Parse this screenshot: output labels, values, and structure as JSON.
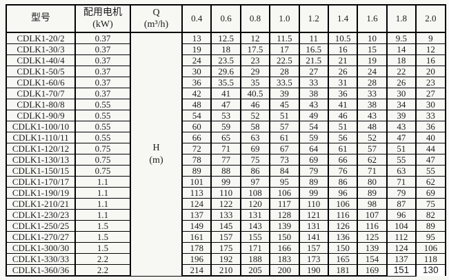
{
  "table": {
    "headers": {
      "model": "型号",
      "motor_line1": "配用电机",
      "motor_line2": "(kW)",
      "q_line1": "Q",
      "q_line2": "(m³/h)",
      "flow_columns": [
        "0.4",
        "0.6",
        "0.8",
        "1.0",
        "1.2",
        "1.4",
        "1.6",
        "1.8",
        "2.0"
      ]
    },
    "h_cell": {
      "line1": "H",
      "line2": "(m)"
    },
    "rows": [
      {
        "model": "CDLK1-20/2",
        "kw": "0.37",
        "values": [
          "13",
          "12.5",
          "12",
          "11.5",
          "11",
          "10.5",
          "10",
          "9.5",
          "9"
        ]
      },
      {
        "model": "CDLK1-30/3",
        "kw": "0.37",
        "values": [
          "19",
          "18",
          "17.5",
          "17",
          "16.5",
          "16",
          "15",
          "14",
          "12"
        ]
      },
      {
        "model": "CDLK1-40/4",
        "kw": "0.37",
        "values": [
          "24",
          "23.5",
          "23",
          "22.5",
          "21.5",
          "21",
          "19",
          "18",
          "16"
        ]
      },
      {
        "model": "CDLK1-50/5",
        "kw": "0.37",
        "values": [
          "30",
          "29.6",
          "29",
          "28",
          "27",
          "26",
          "24",
          "22",
          "20"
        ]
      },
      {
        "model": "CDLK1-60/6",
        "kw": "0.37",
        "values": [
          "36",
          "35.5",
          "35",
          "33.5",
          "33",
          "31",
          "28",
          "26",
          "23"
        ]
      },
      {
        "model": "CDLK1-70/7",
        "kw": "0.37",
        "values": [
          "42",
          "41",
          "40.5",
          "39",
          "38",
          "36",
          "33",
          "30",
          "27"
        ]
      },
      {
        "model": "CDLK1-80/8",
        "kw": "0.55",
        "values": [
          "48",
          "47",
          "46",
          "45",
          "43",
          "41",
          "38",
          "34",
          "30"
        ]
      },
      {
        "model": "CDLK1-90/9",
        "kw": "0.55",
        "values": [
          "54",
          "53",
          "52",
          "51",
          "49",
          "46",
          "43",
          "39",
          "33"
        ]
      },
      {
        "model": "CDLK1-100/10",
        "kw": "0.55",
        "values": [
          "60",
          "59",
          "58",
          "57",
          "54",
          "51",
          "48",
          "43",
          "36"
        ]
      },
      {
        "model": "CDLK1-110/11",
        "kw": "0.55",
        "values": [
          "66",
          "65",
          "63",
          "61",
          "59",
          "56",
          "52",
          "47",
          "40"
        ]
      },
      {
        "model": "CDLK1-120/12",
        "kw": "0.75",
        "values": [
          "72",
          "71",
          "69",
          "67",
          "64",
          "61",
          "57",
          "51",
          "44"
        ]
      },
      {
        "model": "CDLK1-130/13",
        "kw": "0.75",
        "values": [
          "78",
          "77",
          "75",
          "73",
          "69",
          "66",
          "62",
          "55",
          "47"
        ]
      },
      {
        "model": "CDLK1-150/15",
        "kw": "0.75",
        "values": [
          "89",
          "88",
          "86",
          "84",
          "79",
          "76",
          "71",
          "63",
          "55"
        ]
      },
      {
        "model": "CDLK1-170/17",
        "kw": "1.1",
        "values": [
          "101",
          "99",
          "97",
          "95",
          "89",
          "86",
          "80",
          "71",
          "62"
        ]
      },
      {
        "model": "CDLK1-190/19",
        "kw": "1.1",
        "values": [
          "113",
          "110",
          "108",
          "106",
          "99",
          "96",
          "89",
          "79",
          "69"
        ]
      },
      {
        "model": "CDLK1-210/21",
        "kw": "1.1",
        "values": [
          "124",
          "122",
          "120",
          "117",
          "110",
          "106",
          "98",
          "87",
          "75"
        ]
      },
      {
        "model": "CDLK1-230/23",
        "kw": "1.1",
        "values": [
          "137",
          "133",
          "131",
          "128",
          "121",
          "116",
          "107",
          "96",
          "82"
        ]
      },
      {
        "model": "CDLK1-250/25",
        "kw": "1.5",
        "values": [
          "149",
          "145",
          "143",
          "139",
          "131",
          "126",
          "116",
          "104",
          "89"
        ]
      },
      {
        "model": "CDLK1-270/27",
        "kw": "1.5",
        "values": [
          "161",
          "157",
          "155",
          "150",
          "141",
          "136",
          "125",
          "112",
          "95"
        ]
      },
      {
        "model": "CDLK1-300/30",
        "kw": "1.5",
        "values": [
          "178",
          "175",
          "171",
          "166",
          "157",
          "150",
          "139",
          "124",
          "106"
        ]
      },
      {
        "model": "CDLK1-330/33",
        "kw": "2.2",
        "values": [
          "196",
          "192",
          "188",
          "183",
          "173",
          "165",
          "154",
          "137",
          "118"
        ]
      },
      {
        "model": "CDLK1-360/36",
        "kw": "2.2",
        "values": [
          "214",
          "210",
          "205",
          "200",
          "190",
          "181",
          "169",
          "151",
          "130"
        ],
        "patched": [
          7,
          8
        ]
      }
    ]
  },
  "colors": {
    "border": "#000000",
    "page_bg": "#f7f7f4",
    "patched_bg": "#ffffff",
    "text": "#1b1b1b"
  }
}
